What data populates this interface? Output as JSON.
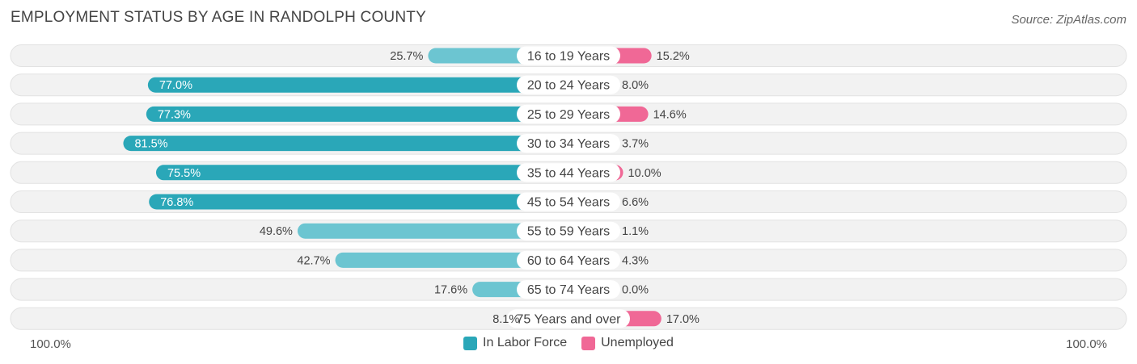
{
  "title": "EMPLOYMENT STATUS BY AGE IN RANDOLPH COUNTY",
  "source": "Source: ZipAtlas.com",
  "colors": {
    "labor_dark": "#2aa7b8",
    "labor_light": "#6cc5d1",
    "unemployed_dark": "#f06896",
    "unemployed_light": "#f7a8c3",
    "row_bg": "#f2f2f2",
    "row_border": "#e2e2e2"
  },
  "chart_data": {
    "type": "bar",
    "orientation": "horizontal-diverging",
    "title": "EMPLOYMENT STATUS BY AGE IN RANDOLPH COUNTY",
    "categories": [
      "16 to 19 Years",
      "20 to 24 Years",
      "25 to 29 Years",
      "30 to 34 Years",
      "35 to 44 Years",
      "45 to 54 Years",
      "55 to 59 Years",
      "60 to 64 Years",
      "65 to 74 Years",
      "75 Years and over"
    ],
    "series": [
      {
        "name": "In Labor Force",
        "values": [
          25.7,
          77.0,
          77.3,
          81.5,
          75.5,
          76.8,
          49.6,
          42.7,
          17.6,
          8.1
        ],
        "labels": [
          "25.7%",
          "77.0%",
          "77.3%",
          "81.5%",
          "75.5%",
          "76.8%",
          "49.6%",
          "42.7%",
          "17.6%",
          "8.1%"
        ]
      },
      {
        "name": "Unemployed",
        "values": [
          15.2,
          8.0,
          14.6,
          3.7,
          10.0,
          6.6,
          1.1,
          4.3,
          0.0,
          17.0
        ],
        "labels": [
          "15.2%",
          "8.0%",
          "14.6%",
          "3.7%",
          "10.0%",
          "6.6%",
          "1.1%",
          "4.3%",
          "0.0%",
          "17.0%"
        ]
      }
    ],
    "axis_min_label": "100.0%",
    "axis_max_label": "100.0%",
    "xlim": [
      -100,
      100
    ],
    "legend": [
      "In Labor Force",
      "Unemployed"
    ],
    "legend_position": "bottom-center"
  }
}
